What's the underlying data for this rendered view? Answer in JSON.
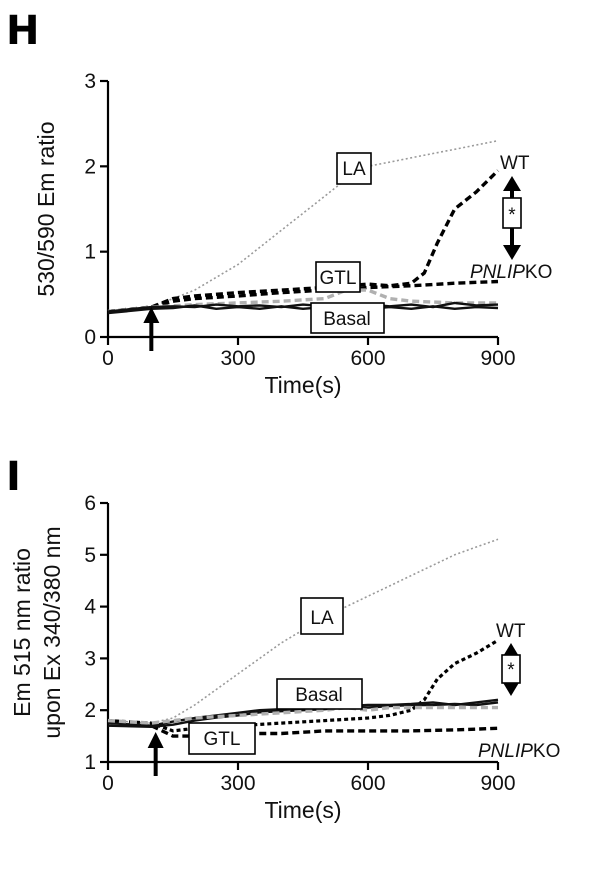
{
  "chart_data": [
    {
      "type": "line",
      "panel_label": "H",
      "xlabel": "Time(s)",
      "ylabel": "530/590 Em ratio",
      "xlim": [
        0,
        900
      ],
      "ylim": [
        0,
        3
      ],
      "xticks": [
        0,
        300,
        600,
        900
      ],
      "yticks": [
        0,
        1,
        2,
        3
      ],
      "stimulus_arrow_x": 100,
      "series": [
        {
          "name": "LA",
          "style": "dotted-gray",
          "x": [
            0,
            100,
            150,
            200,
            250,
            300,
            350,
            400,
            450,
            500,
            550,
            600,
            650,
            700,
            750,
            800,
            850,
            900
          ],
          "y": [
            0.3,
            0.35,
            0.45,
            0.55,
            0.7,
            0.85,
            1.05,
            1.25,
            1.45,
            1.65,
            1.85,
            2.0,
            2.05,
            2.1,
            2.15,
            2.2,
            2.25,
            2.3
          ]
        },
        {
          "name": "WT",
          "style": "dashed-black",
          "x": [
            0,
            100,
            150,
            200,
            300,
            400,
            500,
            600,
            650,
            700,
            730,
            760,
            800,
            850,
            880,
            900
          ],
          "y": [
            0.3,
            0.35,
            0.45,
            0.48,
            0.52,
            0.55,
            0.58,
            0.62,
            0.6,
            0.63,
            0.75,
            1.1,
            1.5,
            1.7,
            1.85,
            1.95
          ]
        },
        {
          "name": "PNLIP-KO",
          "style": "dashed-black",
          "x": [
            0,
            100,
            150,
            200,
            300,
            400,
            500,
            600,
            700,
            800,
            900
          ],
          "y": [
            0.3,
            0.35,
            0.42,
            0.45,
            0.48,
            0.52,
            0.55,
            0.58,
            0.6,
            0.63,
            0.65
          ]
        },
        {
          "name": "GTL",
          "style": "dashed-gray",
          "x": [
            0,
            100,
            200,
            300,
            400,
            500,
            550,
            600,
            650,
            700,
            800,
            900
          ],
          "y": [
            0.3,
            0.35,
            0.38,
            0.4,
            0.42,
            0.45,
            0.55,
            0.55,
            0.45,
            0.42,
            0.4,
            0.4
          ]
        },
        {
          "name": "Basal",
          "style": "solid-black",
          "x": [
            0,
            100,
            150,
            200,
            250,
            300,
            350,
            400,
            450,
            500,
            550,
            600,
            650,
            700,
            750,
            800,
            850,
            900
          ],
          "y": [
            0.3,
            0.35,
            0.36,
            0.35,
            0.38,
            0.36,
            0.37,
            0.35,
            0.38,
            0.36,
            0.34,
            0.38,
            0.36,
            0.38,
            0.35,
            0.4,
            0.37,
            0.38
          ]
        },
        {
          "name": "Basal",
          "style": "solid-black",
          "x": [
            0,
            100,
            150,
            200,
            250,
            300,
            350,
            400,
            450,
            500,
            550,
            600,
            650,
            700,
            750,
            800,
            850,
            900
          ],
          "y": [
            0.28,
            0.33,
            0.34,
            0.37,
            0.33,
            0.35,
            0.33,
            0.36,
            0.33,
            0.35,
            0.37,
            0.33,
            0.35,
            0.33,
            0.36,
            0.33,
            0.35,
            0.34
          ]
        }
      ],
      "annotations": {
        "la": "LA",
        "gtl": "GTL",
        "basal": "Basal",
        "wt": "WT",
        "ko_italic": "PNLIP",
        "ko_suffix": "KO",
        "star": "*"
      }
    },
    {
      "type": "line",
      "panel_label": "I",
      "xlabel": "Time(s)",
      "ylabel_line1": "Em 515 nm ratio",
      "ylabel_line2": "upon Ex 340/380 nm",
      "xlim": [
        0,
        900
      ],
      "ylim": [
        1,
        6
      ],
      "xticks": [
        0,
        300,
        600,
        900
      ],
      "yticks": [
        1,
        2,
        3,
        4,
        5,
        6
      ],
      "stimulus_arrow_x": 110,
      "series": [
        {
          "name": "LA",
          "style": "dotted-gray",
          "x": [
            0,
            100,
            150,
            200,
            250,
            300,
            350,
            400,
            450,
            500,
            550,
            600,
            650,
            700,
            750,
            800,
            850,
            900
          ],
          "y": [
            1.8,
            1.75,
            1.85,
            2.1,
            2.4,
            2.7,
            3.0,
            3.3,
            3.55,
            3.8,
            4.0,
            4.2,
            4.4,
            4.6,
            4.8,
            5.0,
            5.15,
            5.3
          ]
        },
        {
          "name": "WT",
          "style": "dotted-black",
          "x": [
            0,
            100,
            150,
            200,
            300,
            400,
            500,
            600,
            650,
            700,
            730,
            760,
            800,
            850,
            880,
            900
          ],
          "y": [
            1.8,
            1.75,
            1.6,
            1.65,
            1.7,
            1.75,
            1.8,
            1.85,
            1.9,
            2.0,
            2.2,
            2.6,
            2.9,
            3.1,
            3.25,
            3.35
          ]
        },
        {
          "name": "PNLIP-KO",
          "style": "dashed-black",
          "x": [
            0,
            100,
            150,
            200,
            300,
            400,
            500,
            600,
            700,
            800,
            900
          ],
          "y": [
            1.8,
            1.7,
            1.5,
            1.5,
            1.55,
            1.55,
            1.6,
            1.6,
            1.6,
            1.62,
            1.65
          ]
        },
        {
          "name": "Basal",
          "style": "solid-black",
          "x": [
            0,
            100,
            150,
            200,
            250,
            300,
            350,
            400,
            450,
            500,
            550,
            600,
            650,
            700,
            750,
            800,
            850,
            900
          ],
          "y": [
            1.75,
            1.7,
            1.78,
            1.85,
            1.9,
            1.95,
            2.0,
            2.02,
            2.05,
            2.05,
            2.08,
            2.1,
            2.1,
            2.12,
            2.15,
            2.1,
            2.15,
            2.2
          ]
        },
        {
          "name": "Basal",
          "style": "solid-black",
          "x": [
            0,
            100,
            150,
            200,
            250,
            300,
            350,
            400,
            450,
            500,
            550,
            600,
            650,
            700,
            750,
            800,
            850,
            900
          ],
          "y": [
            1.7,
            1.68,
            1.72,
            1.8,
            1.86,
            1.9,
            1.96,
            1.98,
            2.0,
            2.02,
            2.05,
            2.05,
            2.08,
            2.1,
            2.1,
            2.12,
            2.1,
            2.15
          ]
        },
        {
          "name": "GTL",
          "style": "dashed-gray",
          "x": [
            0,
            100,
            150,
            200,
            300,
            400,
            500,
            550,
            600,
            650,
            700,
            800,
            900
          ],
          "y": [
            1.8,
            1.75,
            1.8,
            1.85,
            1.9,
            1.95,
            2.0,
            2.05,
            2.0,
            2.05,
            2.05,
            2.05,
            2.05
          ]
        }
      ],
      "annotations": {
        "la": "LA",
        "gtl": "GTL",
        "basal": "Basal",
        "wt": "WT",
        "ko_italic": "PNLIP",
        "ko_suffix": "KO",
        "star": "*"
      }
    }
  ]
}
